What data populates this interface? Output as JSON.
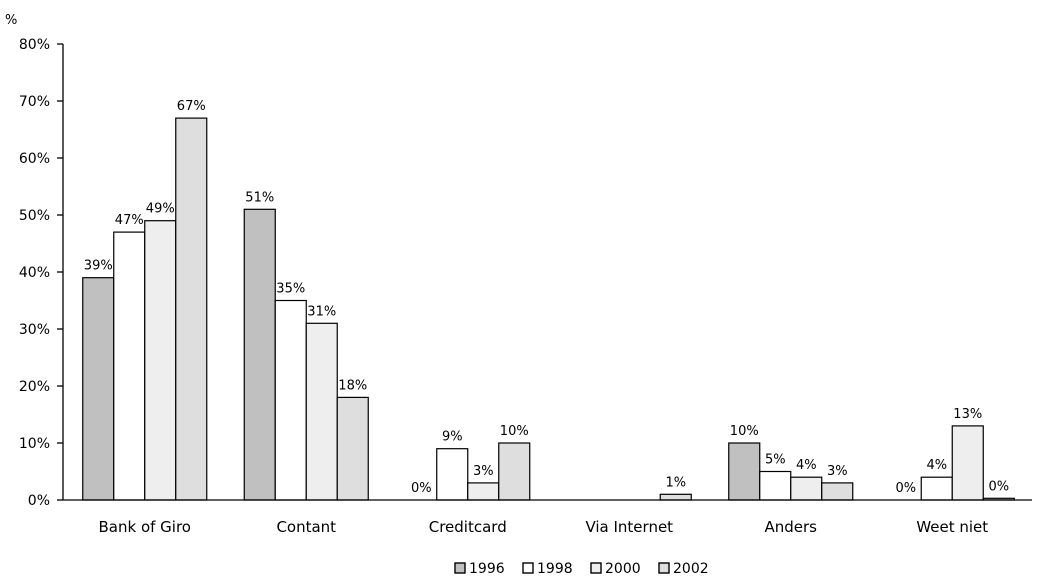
{
  "chart_data": {
    "type": "bar",
    "y_unit_label": "%",
    "categories": [
      "Bank of Giro",
      "Contant",
      "Creditcard",
      "Via Internet",
      "Anders",
      "Weet niet"
    ],
    "ylim": [
      0,
      80
    ],
    "y_ticks": [
      0,
      10,
      20,
      30,
      40,
      50,
      60,
      70,
      80
    ],
    "y_tick_labels": [
      "0%",
      "10%",
      "20%",
      "30%",
      "40%",
      "50%",
      "60%",
      "70%",
      "80%"
    ],
    "grid": false,
    "legend_position": "bottom-center",
    "series": [
      {
        "name": "1996",
        "color": "#c0c0c0",
        "values": [
          39,
          51,
          0,
          null,
          10,
          0
        ],
        "labels": [
          "39%",
          "51%",
          "0%",
          "",
          "10%",
          "0%"
        ]
      },
      {
        "name": "1998",
        "color": "#ffffff",
        "values": [
          47,
          35,
          9,
          null,
          5,
          4
        ],
        "labels": [
          "47%",
          "35%",
          "9%",
          "",
          "5%",
          "4%"
        ]
      },
      {
        "name": "2000",
        "color": "#eeeeee",
        "values": [
          49,
          31,
          3,
          null,
          4,
          13
        ],
        "labels": [
          "49%",
          "31%",
          "3%",
          "",
          "4%",
          "13%"
        ]
      },
      {
        "name": "2002",
        "color": "#dedede",
        "values": [
          67,
          18,
          10,
          1,
          3,
          0.3
        ],
        "labels": [
          "67%",
          "18%",
          "10%",
          "1%",
          "3%",
          "0%"
        ]
      }
    ]
  }
}
